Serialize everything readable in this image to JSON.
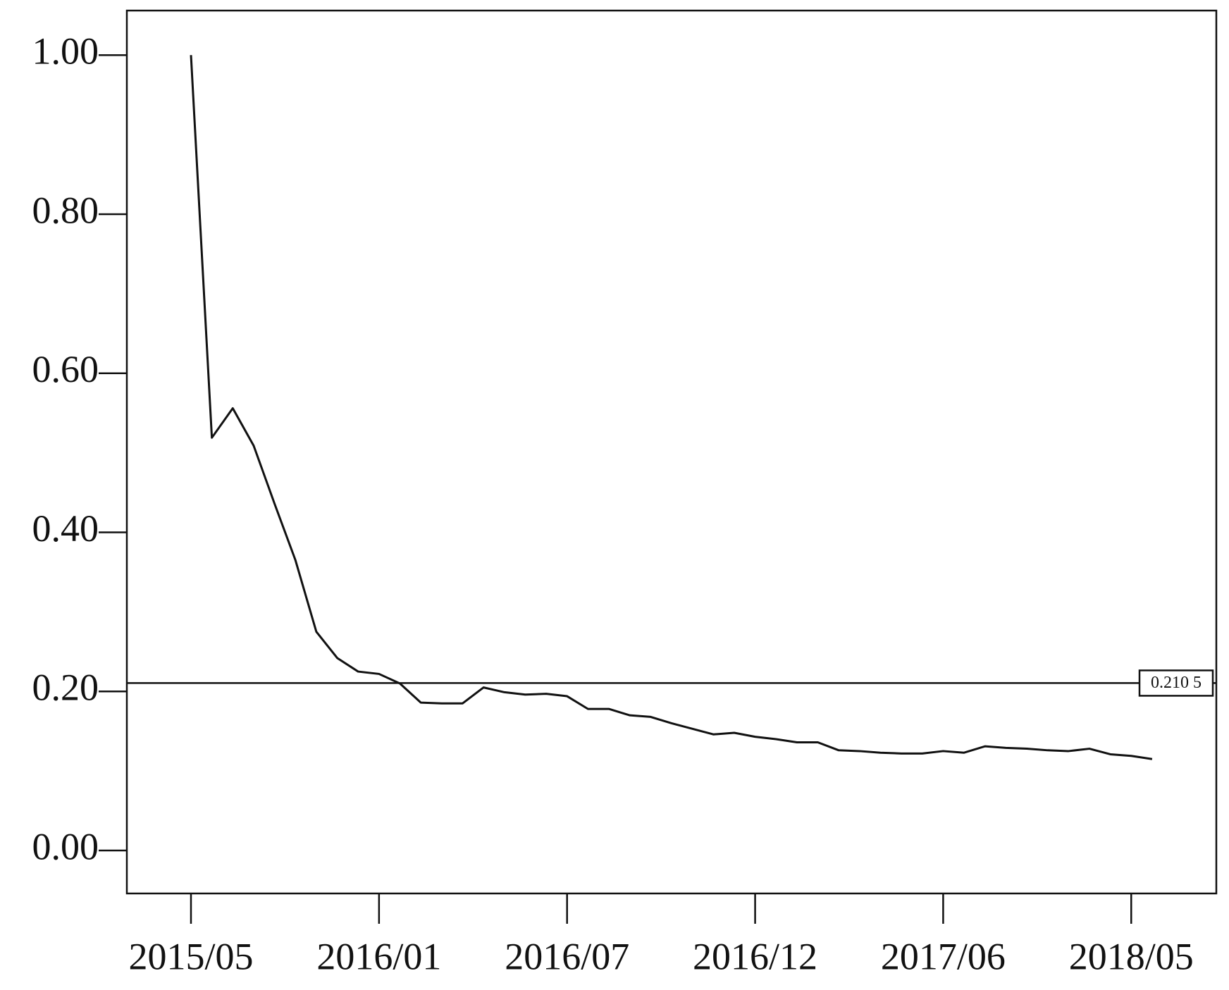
{
  "chart_data": {
    "type": "line",
    "categories": [
      "2015/05",
      null,
      null,
      null,
      null,
      null,
      null,
      null,
      null,
      "2016/01",
      null,
      null,
      null,
      null,
      null,
      null,
      null,
      null,
      "2016/07",
      null,
      null,
      null,
      null,
      null,
      null,
      null,
      null,
      "2016/12",
      null,
      null,
      null,
      null,
      null,
      null,
      null,
      null,
      "2017/06",
      null,
      null,
      null,
      null,
      null,
      null,
      null,
      null,
      "2018/05",
      null
    ],
    "series": [
      {
        "color": "#111111",
        "values": [
          1.0,
          0.519,
          0.556,
          0.509,
          0.436,
          0.365,
          0.275,
          0.242,
          0.225,
          0.222,
          0.21,
          0.186,
          0.185,
          0.185,
          0.205,
          0.199,
          0.196,
          0.197,
          0.194,
          0.178,
          0.178,
          0.17,
          0.168,
          0.16,
          0.153,
          0.146,
          0.148,
          0.143,
          0.14,
          0.136,
          0.136,
          0.126,
          0.125,
          0.123,
          0.122,
          0.122,
          0.125,
          0.123,
          0.131,
          0.129,
          0.128,
          0.126,
          0.125,
          0.128,
          0.121,
          0.119,
          0.115
        ]
      }
    ],
    "ylim": [
      -0.054,
      1.056
    ],
    "yticks": [
      {
        "value": 0,
        "label": "0.00"
      },
      {
        "value": 0.2,
        "label": "0.20"
      },
      {
        "value": 0.4,
        "label": "0.40"
      },
      {
        "value": 0.6,
        "label": "0.60"
      },
      {
        "value": 0.8,
        "label": "0.80"
      },
      {
        "value": 1,
        "label": "1.00"
      }
    ],
    "reference_line": {
      "value": 0.2105,
      "label": "0.210 5"
    }
  }
}
